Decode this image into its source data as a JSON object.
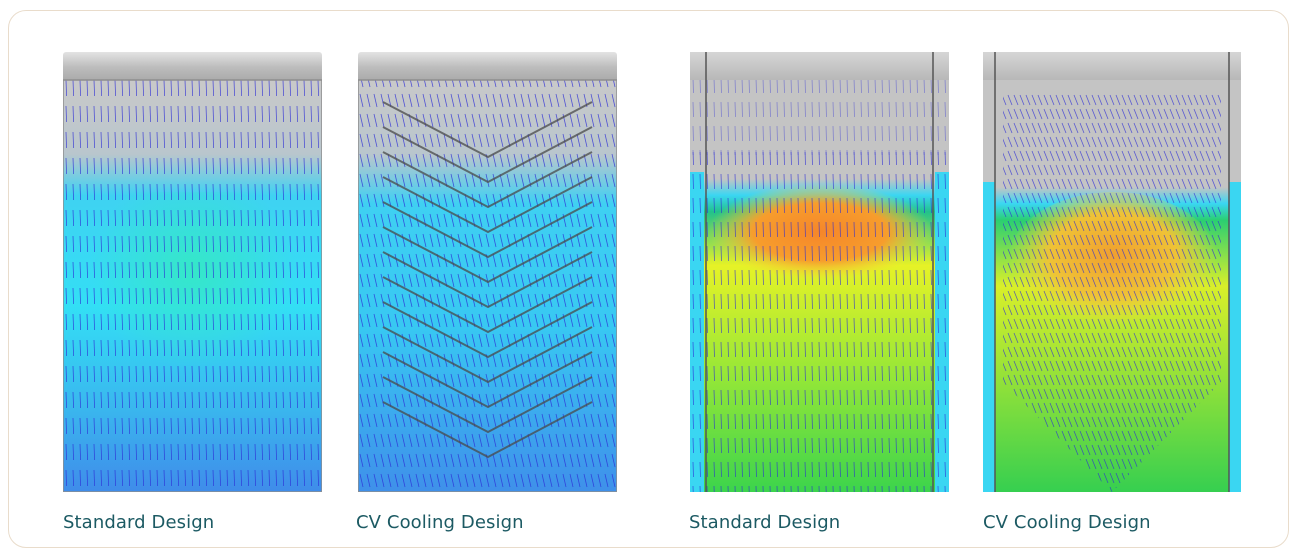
{
  "captions": [
    "Standard Design",
    "CV Cooling Design",
    "Standard Design",
    "CV Cooling Design"
  ],
  "colors": {
    "caption": "#1c5a63",
    "border": "#e9dccb",
    "vector": "#2a2ad6",
    "cold_fill": "#36d6f0",
    "warm_core": "#f5862a"
  },
  "icons": {
    "panel-1": "standard-design-cold-simulation",
    "panel-2": "cv-cooling-design-cold-simulation",
    "panel-3": "standard-design-warm-simulation",
    "panel-4": "cv-cooling-design-warm-simulation"
  }
}
